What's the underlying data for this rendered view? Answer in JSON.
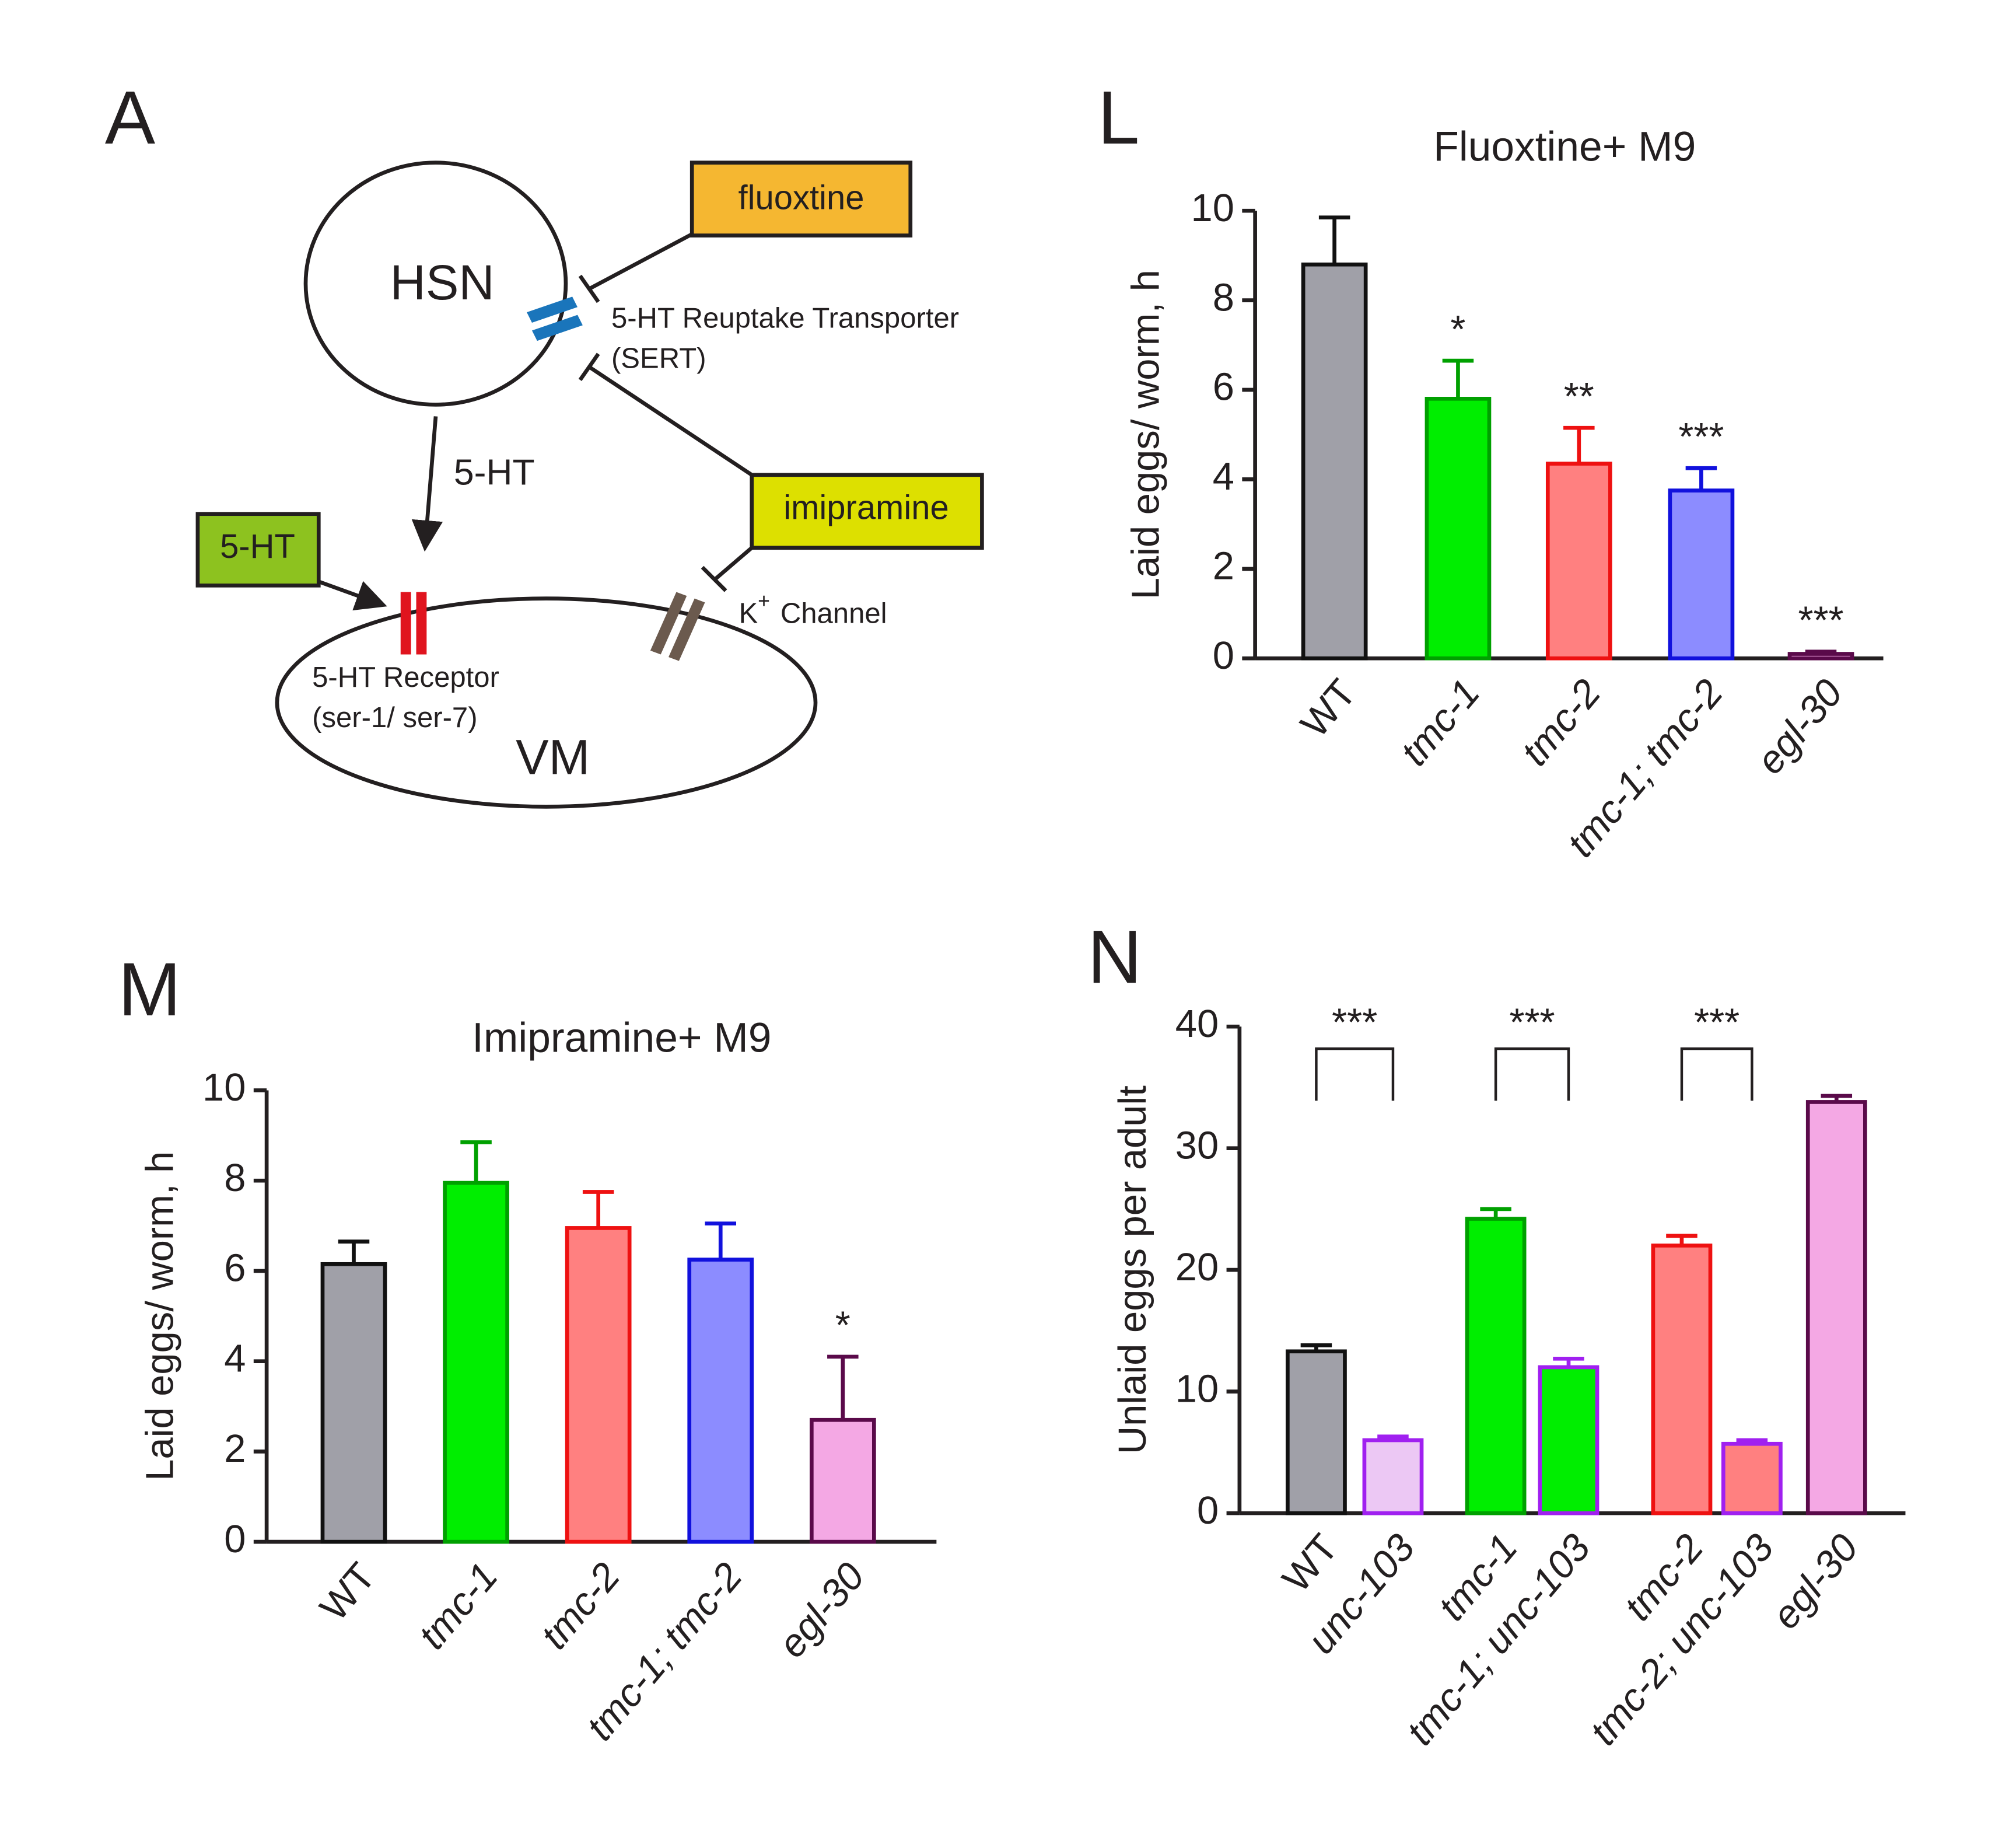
{
  "diagram": {
    "panel": "A",
    "hsn": "HSN",
    "vm": "VM",
    "fluoxetine": "fluoxtine",
    "imipramine": "imipramine",
    "serotonin_box": "5-HT",
    "arrow_label": "5-HT",
    "sert_line1": "5-HT Reuptake Transporter",
    "sert_line2": "(SERT)",
    "receptor_line1": "5-HT Receptor",
    "receptor_line2": "(ser-1/ ser-7)",
    "k_symbol": "K",
    "k_charge": "+",
    "k_channel": "Channel"
  },
  "chart_data": [
    {
      "type": "bar",
      "panel": "L",
      "title": "Fluoxtine+ M9",
      "ylabel": "Laid eggs/ worm, h",
      "categories": [
        "WT",
        "tmc-1",
        "tmc-2",
        "tmc-1; tmc-2",
        "egl-30"
      ],
      "italic_categories": [
        false,
        true,
        true,
        true,
        true
      ],
      "values": [
        8.8,
        5.8,
        4.35,
        3.75,
        0.1
      ],
      "errors": [
        1.05,
        0.85,
        0.8,
        0.5,
        0.05
      ],
      "colors": [
        "#a0a0a8",
        "#00ee00",
        "#ff8080",
        "#8c8cff",
        "#f4a8e4"
      ],
      "edge_colors": [
        "#111111",
        "#00a000",
        "#ee1111",
        "#1111dd",
        "#5a0a4a"
      ],
      "annotations": [
        null,
        "*",
        "**",
        "***",
        "***"
      ],
      "ylim": [
        0,
        10
      ],
      "yticks": [
        0,
        2,
        4,
        6,
        8,
        10
      ]
    },
    {
      "type": "bar",
      "panel": "M",
      "title": "Imipramine+ M9",
      "ylabel": "Laid eggs/ worm, h",
      "categories": [
        "WT",
        "tmc-1",
        "tmc-2",
        "tmc-1; tmc-2",
        "egl-30"
      ],
      "italic_categories": [
        false,
        true,
        true,
        true,
        true
      ],
      "values": [
        6.15,
        7.95,
        6.95,
        6.25,
        2.7
      ],
      "errors": [
        0.5,
        0.9,
        0.8,
        0.8,
        1.4
      ],
      "colors": [
        "#a0a0a8",
        "#00ee00",
        "#ff8080",
        "#8c8cff",
        "#f4a8e4"
      ],
      "edge_colors": [
        "#111111",
        "#00a000",
        "#ee1111",
        "#1111dd",
        "#5a0a4a"
      ],
      "annotations": [
        null,
        null,
        null,
        null,
        "*"
      ],
      "ylim": [
        0,
        10
      ],
      "yticks": [
        0,
        2,
        4,
        6,
        8,
        10
      ]
    },
    {
      "type": "bar",
      "panel": "N",
      "ylabel": "Unlaid eggs per adult",
      "categories": [
        "WT",
        "unc-103",
        "tmc-1",
        "tmc-1; unc-103",
        "tmc-2",
        "tmc-2; unc-103",
        "egl-30"
      ],
      "italic_categories": [
        false,
        true,
        true,
        true,
        true,
        true,
        true
      ],
      "values": [
        13.3,
        6.0,
        24.2,
        12.0,
        22.0,
        5.7,
        33.8
      ],
      "errors": [
        0.5,
        0.3,
        0.8,
        0.7,
        0.8,
        0.3,
        0.5
      ],
      "colors": [
        "#a0a0a8",
        "#ecc8f4",
        "#00ee00",
        "#00ee00",
        "#ff8080",
        "#ff8080",
        "#f4a8e4"
      ],
      "edge_colors": [
        "#111111",
        "#a020f0",
        "#00a000",
        "#a020f0",
        "#ee1111",
        "#a020f0",
        "#5a0a4a"
      ],
      "brackets": [
        {
          "from": 0,
          "to": 1,
          "label": "***"
        },
        {
          "from": 2,
          "to": 3,
          "label": "***"
        },
        {
          "from": 4,
          "to": 5,
          "label": "***"
        }
      ],
      "ylim": [
        0,
        40
      ],
      "yticks": [
        0,
        10,
        20,
        30,
        40
      ]
    }
  ]
}
